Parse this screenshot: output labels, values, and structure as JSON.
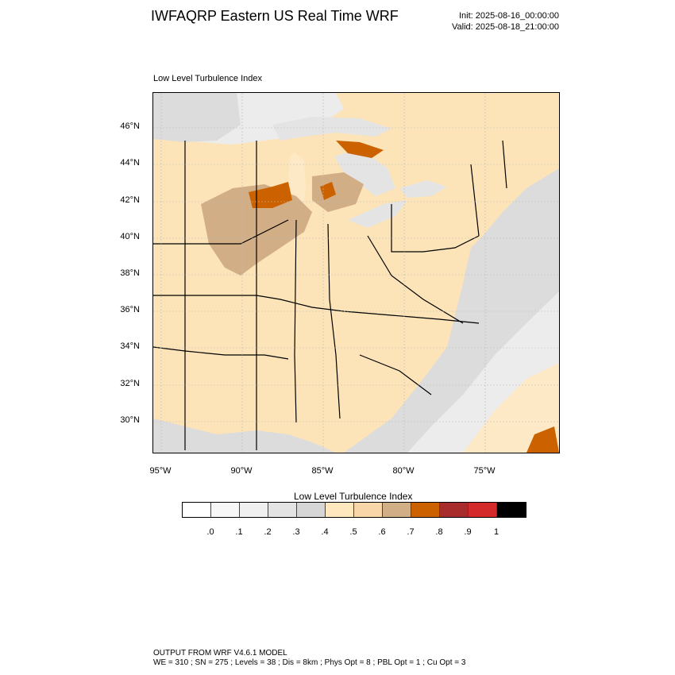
{
  "header": {
    "title": "IWFAQRP Eastern US Real Time WRF",
    "init": "Init: 2025-08-16_00:00:00",
    "valid": "Valid: 2025-08-18_21:00:00"
  },
  "map": {
    "field_title": "Low Level Turbulence Index",
    "lat_labels": [
      "46°N",
      "44°N",
      "42°N",
      "40°N",
      "38°N",
      "36°N",
      "34°N",
      "32°N",
      "30°N"
    ],
    "lon_labels": [
      "95°W",
      "90°W",
      "85°W",
      "80°W",
      "75°W"
    ],
    "colors": {
      "land_base": "#fce4b8",
      "land_light": "#fde9c6",
      "elevated": "#d2ae87",
      "high": "#cc6100",
      "water_gray": "#dcdcdc",
      "water_light": "#ececec",
      "lake": "#e4e4e4"
    }
  },
  "colorbar": {
    "title": "Low Level Turbulence Index",
    "colors": [
      "#ffffff",
      "#f7f7f7",
      "#f0f0f0",
      "#e3e3e3",
      "#d6d6d6",
      "#ffe7be",
      "#f8d6a8",
      "#d2ae87",
      "#cc6100",
      "#a82c2c",
      "#d42a2a",
      "#000000"
    ],
    "labels": [
      ".0",
      ".1",
      ".2",
      ".3",
      ".4",
      ".5",
      ".6",
      ".7",
      ".8",
      ".9",
      "1"
    ]
  },
  "footer": {
    "line1": "OUTPUT FROM WRF V4.6.1 MODEL",
    "line2": "WE = 310 ; SN = 275 ; Levels = 38 ; Dis = 8km ; Phys Opt = 8 ; PBL Opt = 1 ; Cu Opt = 3"
  }
}
